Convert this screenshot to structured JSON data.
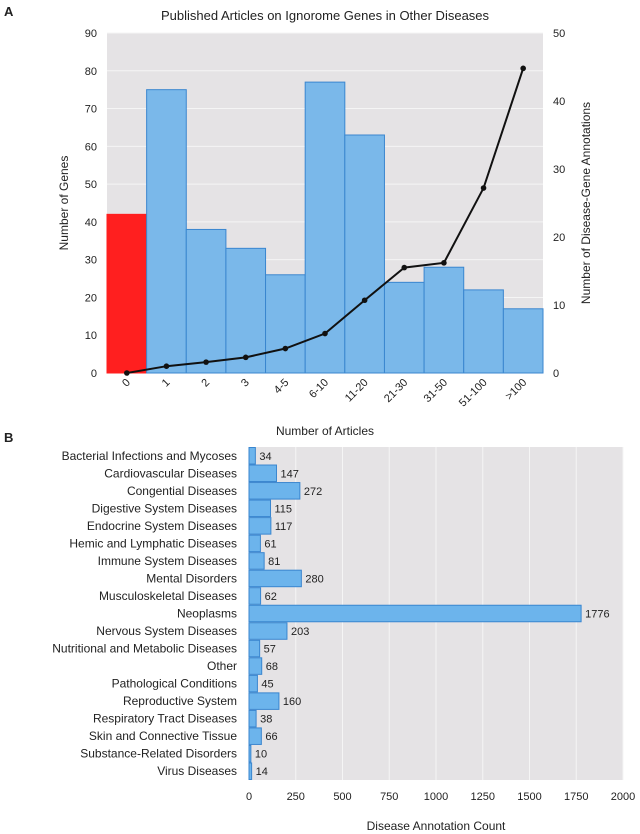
{
  "chart_data": [
    {
      "panel": "A",
      "type": "bar+line",
      "title": "Published Articles on Ignorome Genes in Other Diseases",
      "xlabel": "Number of Articles",
      "ylabel": "Number of Genes",
      "y2label": "Number of Disease-Gene Annotations",
      "categories": [
        "0",
        "1",
        "2",
        "3",
        "4-5",
        "6-10",
        "11-20",
        "21-30",
        "31-50",
        "51-100",
        ">100"
      ],
      "bar_values": [
        42,
        75,
        38,
        33,
        26,
        77,
        63,
        24,
        28,
        22,
        17
      ],
      "bar_colors": [
        "#ff1f1f",
        "#7ab8ea",
        "#7ab8ea",
        "#7ab8ea",
        "#7ab8ea",
        "#7ab8ea",
        "#7ab8ea",
        "#7ab8ea",
        "#7ab8ea",
        "#7ab8ea",
        "#7ab8ea"
      ],
      "line_values": [
        0,
        1.0,
        1.6,
        2.3,
        3.6,
        5.8,
        10.7,
        15.5,
        16.2,
        27.2,
        44.8
      ],
      "ylim": [
        0,
        90
      ],
      "yticks": [
        0,
        10,
        20,
        30,
        40,
        50,
        60,
        70,
        80,
        90
      ],
      "y2lim": [
        0,
        50
      ],
      "y2ticks": [
        0,
        10,
        20,
        30,
        40,
        50
      ],
      "grid": true
    },
    {
      "panel": "B",
      "type": "bar",
      "orientation": "horizontal",
      "xlabel": "Disease Annotation Count",
      "categories": [
        "Bacterial Infections and Mycoses",
        "Cardiovascular Diseases",
        "Congential Diseases",
        "Digestive System Diseases",
        "Endocrine System Diseases",
        "Hemic and Lymphatic Diseases",
        "Immune System Diseases",
        "Mental Disorders",
        "Musculoskeletal Diseases",
        "Neoplasms",
        "Nervous System Diseases",
        "Nutritional and Metabolic Diseases",
        "Other",
        "Pathological Conditions",
        "Reproductive System",
        "Respiratory Tract Diseases",
        "Skin and Connective Tissue",
        "Substance-Related Disorders",
        "Virus Diseases"
      ],
      "values": [
        34,
        147,
        272,
        115,
        117,
        61,
        81,
        280,
        62,
        1776,
        203,
        57,
        68,
        45,
        160,
        38,
        66,
        10,
        14
      ],
      "xlim": [
        0,
        2000
      ],
      "xticks": [
        0,
        250,
        500,
        750,
        1000,
        1250,
        1500,
        1750,
        2000
      ],
      "bar_color": "#6cb4ec",
      "grid": true
    }
  ]
}
